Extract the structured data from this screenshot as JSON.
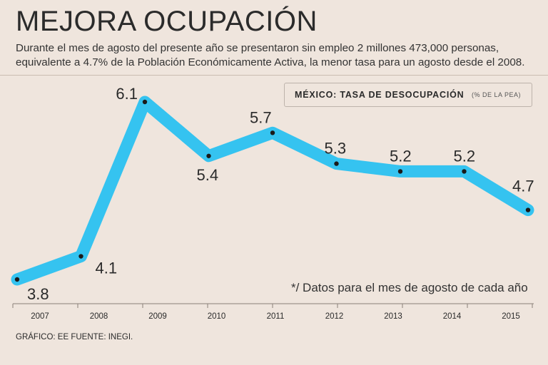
{
  "header": {
    "title": "MEJORA OCUPACIÓN",
    "subtitle": "Durante el mes de agosto del presente año se presentaron sin empleo 2 millones 473,000 personas, equivalente a 4.7% de la Población Económicamente Activa, la menor tasa para un agosto desde el 2008."
  },
  "legend": {
    "title": "MÉXICO: TASA DE DESOCUPACIÓN",
    "unit": "(% DE LA PEA)"
  },
  "note": "*/ Datos para el mes de agosto de cada año",
  "credit": "GRÁFICO: EE  FUENTE: INEGI.",
  "colors": {
    "line": "#35c3f0",
    "background": "#efe5dd",
    "point": "#1a1a1a",
    "text": "#2a2a2a"
  },
  "chart_data": {
    "type": "line",
    "categories": [
      "2007",
      "2008",
      "2009",
      "2010",
      "2011",
      "2012",
      "2013",
      "2014",
      "2015"
    ],
    "series": [
      {
        "values": [
          3.8,
          4.1,
          6.1,
          5.4,
          5.7,
          5.3,
          5.2,
          5.2,
          4.7
        ]
      }
    ],
    "data_labels": [
      "3.8",
      "4.1",
      "6.1",
      "5.4",
      "5.7",
      "5.3",
      "5.2",
      "5.2",
      "4.7"
    ],
    "title": "MÉXICO: TASA DE DESOCUPACIÓN",
    "ylabel": "(% DE LA PEA)",
    "grid": false,
    "legend": "top-right"
  }
}
